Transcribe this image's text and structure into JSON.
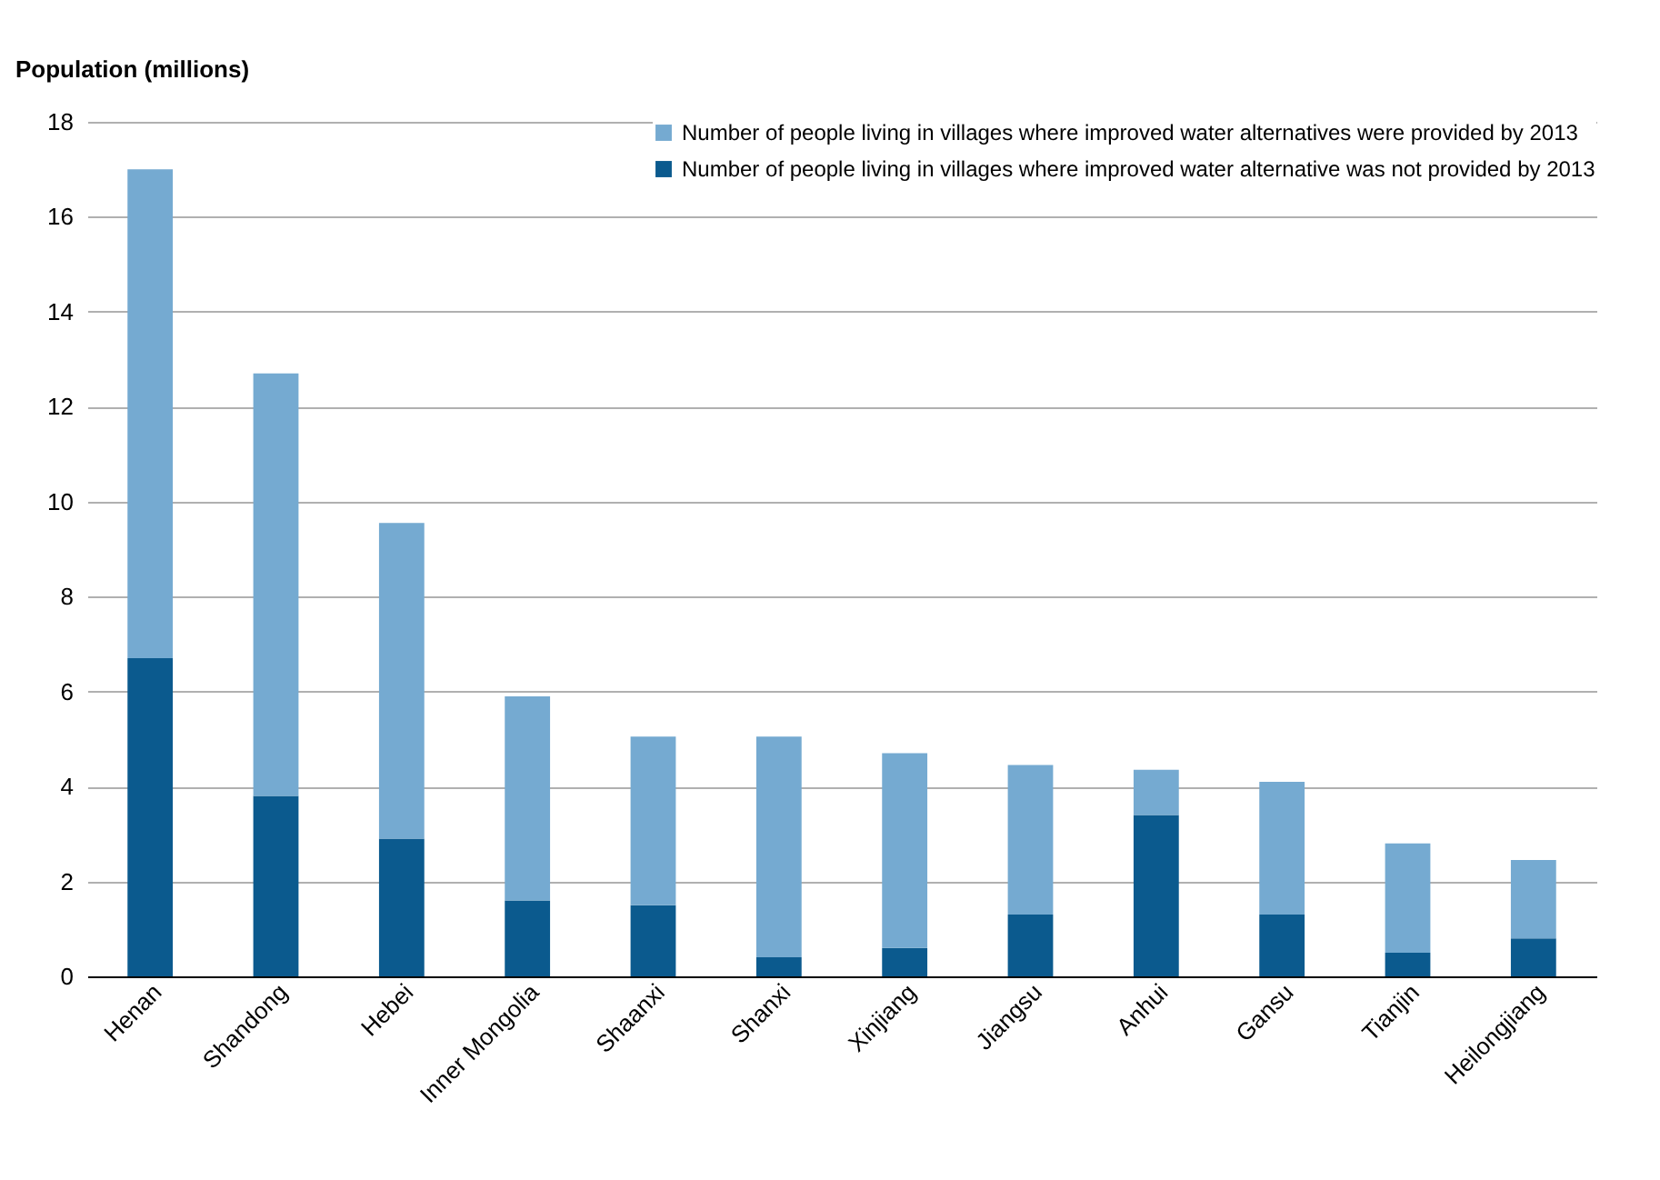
{
  "chart_data": {
    "type": "bar",
    "stacked": true,
    "ylabel": "Population (millions)",
    "categories": [
      "Henan",
      "Shandong",
      "Hebei",
      "Inner Mongolia",
      "Shaanxi",
      "Shanxi",
      "Xinjiang",
      "Jiangsu",
      "Anhui",
      "Gansu",
      "Tianjin",
      "Heilongjiang"
    ],
    "series": [
      {
        "name": "Number of people living in villages where improved water alternative was not provided by 2013",
        "color": "#0b5a8e",
        "values": [
          6.7,
          3.8,
          2.9,
          1.6,
          1.5,
          0.4,
          0.6,
          1.3,
          3.4,
          1.3,
          0.5,
          0.8
        ]
      },
      {
        "name": "Number of people living in villages where improved water alternatives were provided by 2013",
        "color": "#75aad1",
        "values": [
          10.3,
          8.9,
          6.65,
          4.3,
          3.55,
          4.65,
          4.1,
          3.15,
          0.95,
          2.8,
          2.3,
          1.65
        ]
      }
    ],
    "ylim": [
      0,
      18
    ],
    "yticks": [
      0,
      2,
      4,
      6,
      8,
      10,
      12,
      14,
      16,
      18
    ],
    "grid": "y",
    "legend": "top right"
  }
}
